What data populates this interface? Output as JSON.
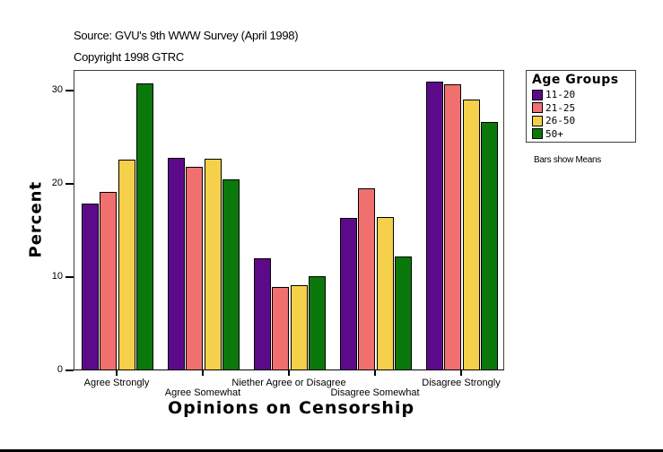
{
  "header": {
    "source": "Source: GVU's 9th WWW Survey (April 1998)",
    "copyright": "Copyright 1998 GTRC"
  },
  "legend": {
    "title": "Age Groups",
    "items": [
      {
        "label": "11-20",
        "color": "#5c0a8a"
      },
      {
        "label": "21-25",
        "color": "#f07070"
      },
      {
        "label": "26-50",
        "color": "#f5d04a"
      },
      {
        "label": "50+",
        "color": "#0a780a"
      }
    ]
  },
  "note": "Bars show Means",
  "chart_data": {
    "type": "bar",
    "title": "",
    "subtitle": "Source: GVU's 9th WWW Survey (April 1998) / Copyright 1998 GTRC",
    "xlabel": "Opinions on Censorship",
    "ylabel": "Percent",
    "ylim": [
      0,
      32
    ],
    "yticks": [
      0,
      10,
      20,
      30
    ],
    "grid": false,
    "legend_position": "right",
    "legend_title": "Age Groups",
    "categories": [
      "Agree Strongly",
      "Agree Somewhat",
      "Niether Agree or Disagree",
      "Disagree Somewhat",
      "Disagree Strongly"
    ],
    "series": [
      {
        "name": "11-20",
        "color": "#5c0a8a",
        "values": [
          17.9,
          22.8,
          12.0,
          16.3,
          31.0
        ]
      },
      {
        "name": "21-25",
        "color": "#f07070",
        "values": [
          19.1,
          21.8,
          8.9,
          19.5,
          30.7
        ]
      },
      {
        "name": "26-50",
        "color": "#f5d04a",
        "values": [
          22.6,
          22.7,
          9.1,
          16.4,
          29.0
        ]
      },
      {
        "name": "50+",
        "color": "#0a780a",
        "values": [
          30.8,
          20.5,
          10.1,
          12.2,
          26.6
        ]
      }
    ],
    "annotations": [
      "Bars show Means"
    ]
  }
}
